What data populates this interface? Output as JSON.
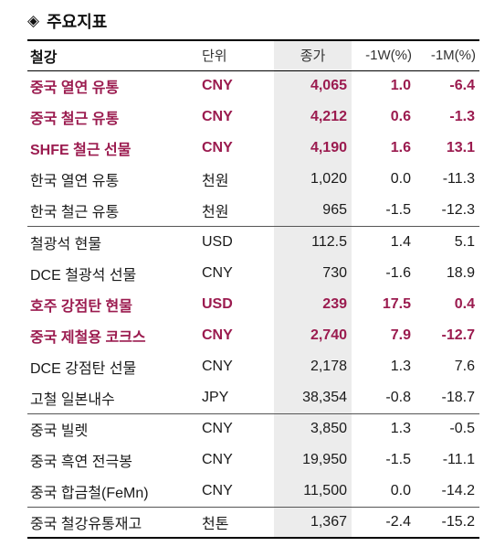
{
  "title": {
    "icon": "◈",
    "text": "주요지표"
  },
  "columns": [
    "철강",
    "단위",
    "종가",
    "-1W(%)",
    "-1M(%)"
  ],
  "rows": [
    {
      "name": "중국 열연 유통",
      "unit": "CNY",
      "close": "4,065",
      "w1": "1.0",
      "m1": "-6.4",
      "hl": true,
      "sep": false
    },
    {
      "name": "중국 철근 유통",
      "unit": "CNY",
      "close": "4,212",
      "w1": "0.6",
      "m1": "-1.3",
      "hl": true,
      "sep": false
    },
    {
      "name": "SHFE 철근 선물",
      "unit": "CNY",
      "close": "4,190",
      "w1": "1.6",
      "m1": "13.1",
      "hl": true,
      "sep": false
    },
    {
      "name": "한국 열연 유통",
      "unit": "천원",
      "close": "1,020",
      "w1": "0.0",
      "m1": "-11.3",
      "hl": false,
      "sep": false
    },
    {
      "name": "한국 철근 유통",
      "unit": "천원",
      "close": "965",
      "w1": "-1.5",
      "m1": "-12.3",
      "hl": false,
      "sep": false
    },
    {
      "name": "철광석 현물",
      "unit": "USD",
      "close": "112.5",
      "w1": "1.4",
      "m1": "5.1",
      "hl": false,
      "sep": true
    },
    {
      "name": "DCE 철광석 선물",
      "unit": "CNY",
      "close": "730",
      "w1": "-1.6",
      "m1": "18.9",
      "hl": false,
      "sep": false
    },
    {
      "name": "호주 강점탄 현물",
      "unit": "USD",
      "close": "239",
      "w1": "17.5",
      "m1": "0.4",
      "hl": true,
      "sep": false
    },
    {
      "name": "중국 제철용 코크스",
      "unit": "CNY",
      "close": "2,740",
      "w1": "7.9",
      "m1": "-12.7",
      "hl": true,
      "sep": false
    },
    {
      "name": "DCE 강점탄 선물",
      "unit": "CNY",
      "close": "2,178",
      "w1": "1.3",
      "m1": "7.6",
      "hl": false,
      "sep": false
    },
    {
      "name": "고철 일본내수",
      "unit": "JPY",
      "close": "38,354",
      "w1": "-0.8",
      "m1": "-18.7",
      "hl": false,
      "sep": false
    },
    {
      "name": "중국 빌렛",
      "unit": "CNY",
      "close": "3,850",
      "w1": "1.3",
      "m1": "-0.5",
      "hl": false,
      "sep": true
    },
    {
      "name": "중국 흑연 전극봉",
      "unit": "CNY",
      "close": "19,950",
      "w1": "-1.5",
      "m1": "-11.1",
      "hl": false,
      "sep": false
    },
    {
      "name": "중국 합금철(FeMn)",
      "unit": "CNY",
      "close": "11,500",
      "w1": "0.0",
      "m1": "-14.2",
      "hl": false,
      "sep": false
    },
    {
      "name": "중국 철강유통재고",
      "unit": "천톤",
      "close": "1,367",
      "w1": "-2.4",
      "m1": "-15.2",
      "hl": false,
      "sep": true
    }
  ],
  "colors": {
    "highlight": "#9b1b4f",
    "price_bg": "#ececec"
  }
}
